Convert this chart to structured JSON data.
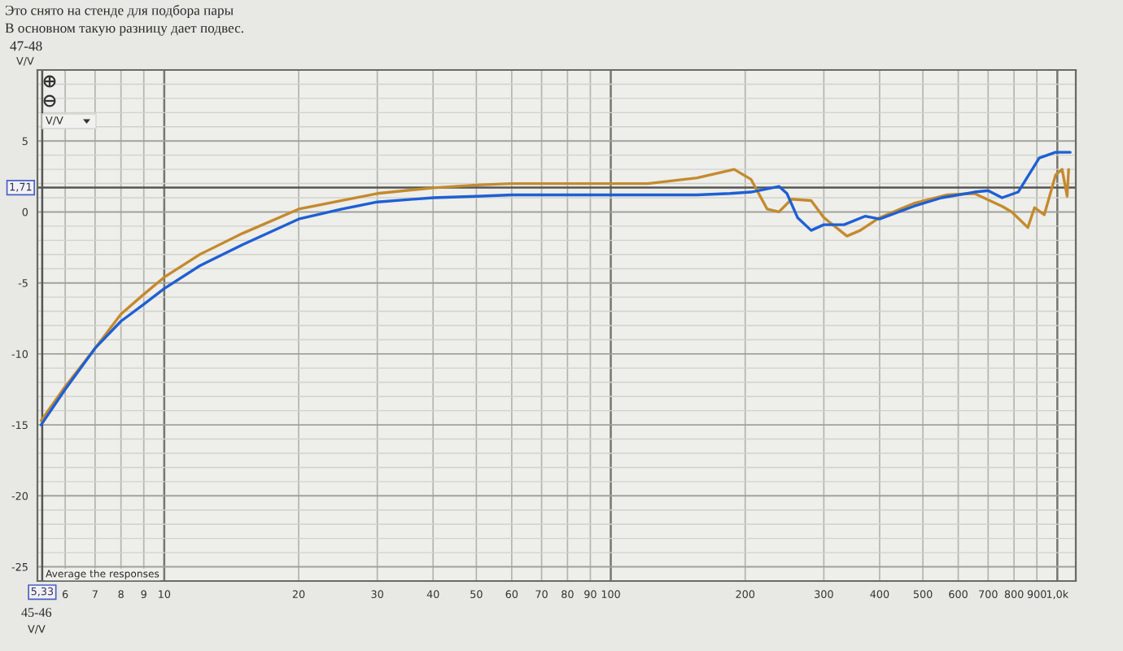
{
  "chart_data": {
    "type": "line",
    "title": "Это снято на стенде для подбора пары",
    "subtitle": "В основном такую разницу дает подвес.",
    "ylabel": "V/V",
    "annotations": [
      "47-48",
      "V/V",
      "Average the responses",
      "45-46",
      "V/V"
    ],
    "log": "x",
    "grid": true,
    "xlim": [
      5.2,
      1100
    ],
    "xticks": [
      6,
      7,
      8,
      9,
      10,
      20,
      30,
      40,
      50,
      60,
      70,
      80,
      90,
      100,
      200,
      300,
      400,
      500,
      600,
      700,
      800,
      900,
      {
        "value": 1000,
        "label": "1,0k"
      }
    ],
    "ylim": [
      -26,
      10
    ],
    "yticks": [
      -25,
      {
        "value": -24,
        "label": null
      },
      {
        "value": -23,
        "label": null
      },
      {
        "value": -22,
        "label": null
      },
      {
        "value": -21,
        "label": null
      },
      -20,
      {
        "value": -19,
        "label": null
      },
      {
        "value": -18,
        "label": null
      },
      {
        "value": -17,
        "label": null
      },
      {
        "value": -16,
        "label": null
      },
      -15,
      {
        "value": -14,
        "label": null
      },
      {
        "value": -13,
        "label": null
      },
      {
        "value": -12,
        "label": null
      },
      {
        "value": -11,
        "label": null
      },
      -10,
      {
        "value": -9,
        "label": null
      },
      {
        "value": -8,
        "label": null
      },
      {
        "value": -7,
        "label": null
      },
      {
        "value": -6,
        "label": null
      },
      -5,
      {
        "value": -4,
        "label": null
      },
      {
        "value": -3,
        "label": null
      },
      {
        "value": -2,
        "label": null
      },
      {
        "value": -1,
        "label": null
      },
      0,
      {
        "value": 1,
        "label": null
      },
      {
        "value": 2,
        "label": null
      },
      {
        "value": 3,
        "label": null
      },
      {
        "value": 4,
        "label": null
      },
      5,
      {
        "value": 6,
        "label": null
      },
      {
        "value": 7,
        "label": null
      },
      {
        "value": 8,
        "label": null
      },
      {
        "value": 9,
        "label": null
      }
    ],
    "ref_lines": [
      {
        "axis": "y",
        "value": 1.71,
        "label": "1,71",
        "color": "#555555"
      },
      {
        "axis": "x",
        "value": 5.33,
        "label": "5,33",
        "color": "#555555"
      }
    ],
    "series": [
      {
        "color": "#c48a2e",
        "x": [
          5.3,
          6,
          7,
          8,
          9,
          10,
          12,
          15,
          20,
          25,
          30,
          40,
          50,
          60,
          80,
          100,
          121,
          156,
          189,
          206,
          224,
          238,
          254,
          281,
          300,
          338,
          362,
          400,
          477,
          565,
          652,
          752,
          791,
          859,
          889,
          935,
          991,
          1025,
          1052,
          1060
        ],
        "values": [
          -14.7,
          -12.3,
          -9.6,
          -7.2,
          -5.8,
          -4.6,
          -3.0,
          -1.5,
          0.2,
          0.8,
          1.3,
          1.7,
          1.9,
          2.0,
          2.0,
          2.0,
          2.0,
          2.4,
          3.0,
          2.3,
          0.2,
          0.0,
          0.9,
          0.8,
          -0.4,
          -1.7,
          -1.3,
          -0.4,
          0.6,
          1.2,
          1.3,
          0.4,
          0.0,
          -1.1,
          0.3,
          -0.2,
          2.6,
          3.0,
          1.1,
          3.0
        ]
      },
      {
        "color": "#1e5fd4",
        "x": [
          5.3,
          6,
          7,
          8,
          9,
          10,
          12,
          15,
          20,
          25,
          30,
          40,
          50,
          60,
          80,
          100,
          130,
          156,
          185,
          206,
          238,
          248,
          262,
          281,
          300,
          333,
          371,
          400,
          477,
          551,
          652,
          700,
          752,
          817,
          851,
          911,
          991,
          1069
        ],
        "values": [
          -15.0,
          -12.5,
          -9.6,
          -7.7,
          -6.5,
          -5.4,
          -3.8,
          -2.3,
          -0.5,
          0.2,
          0.7,
          1.0,
          1.1,
          1.2,
          1.2,
          1.2,
          1.2,
          1.2,
          1.3,
          1.4,
          1.8,
          1.3,
          -0.4,
          -1.3,
          -0.9,
          -0.9,
          -0.3,
          -0.5,
          0.4,
          1.0,
          1.4,
          1.5,
          1.0,
          1.4,
          2.3,
          3.8,
          4.2,
          4.2
        ]
      }
    ]
  }
}
